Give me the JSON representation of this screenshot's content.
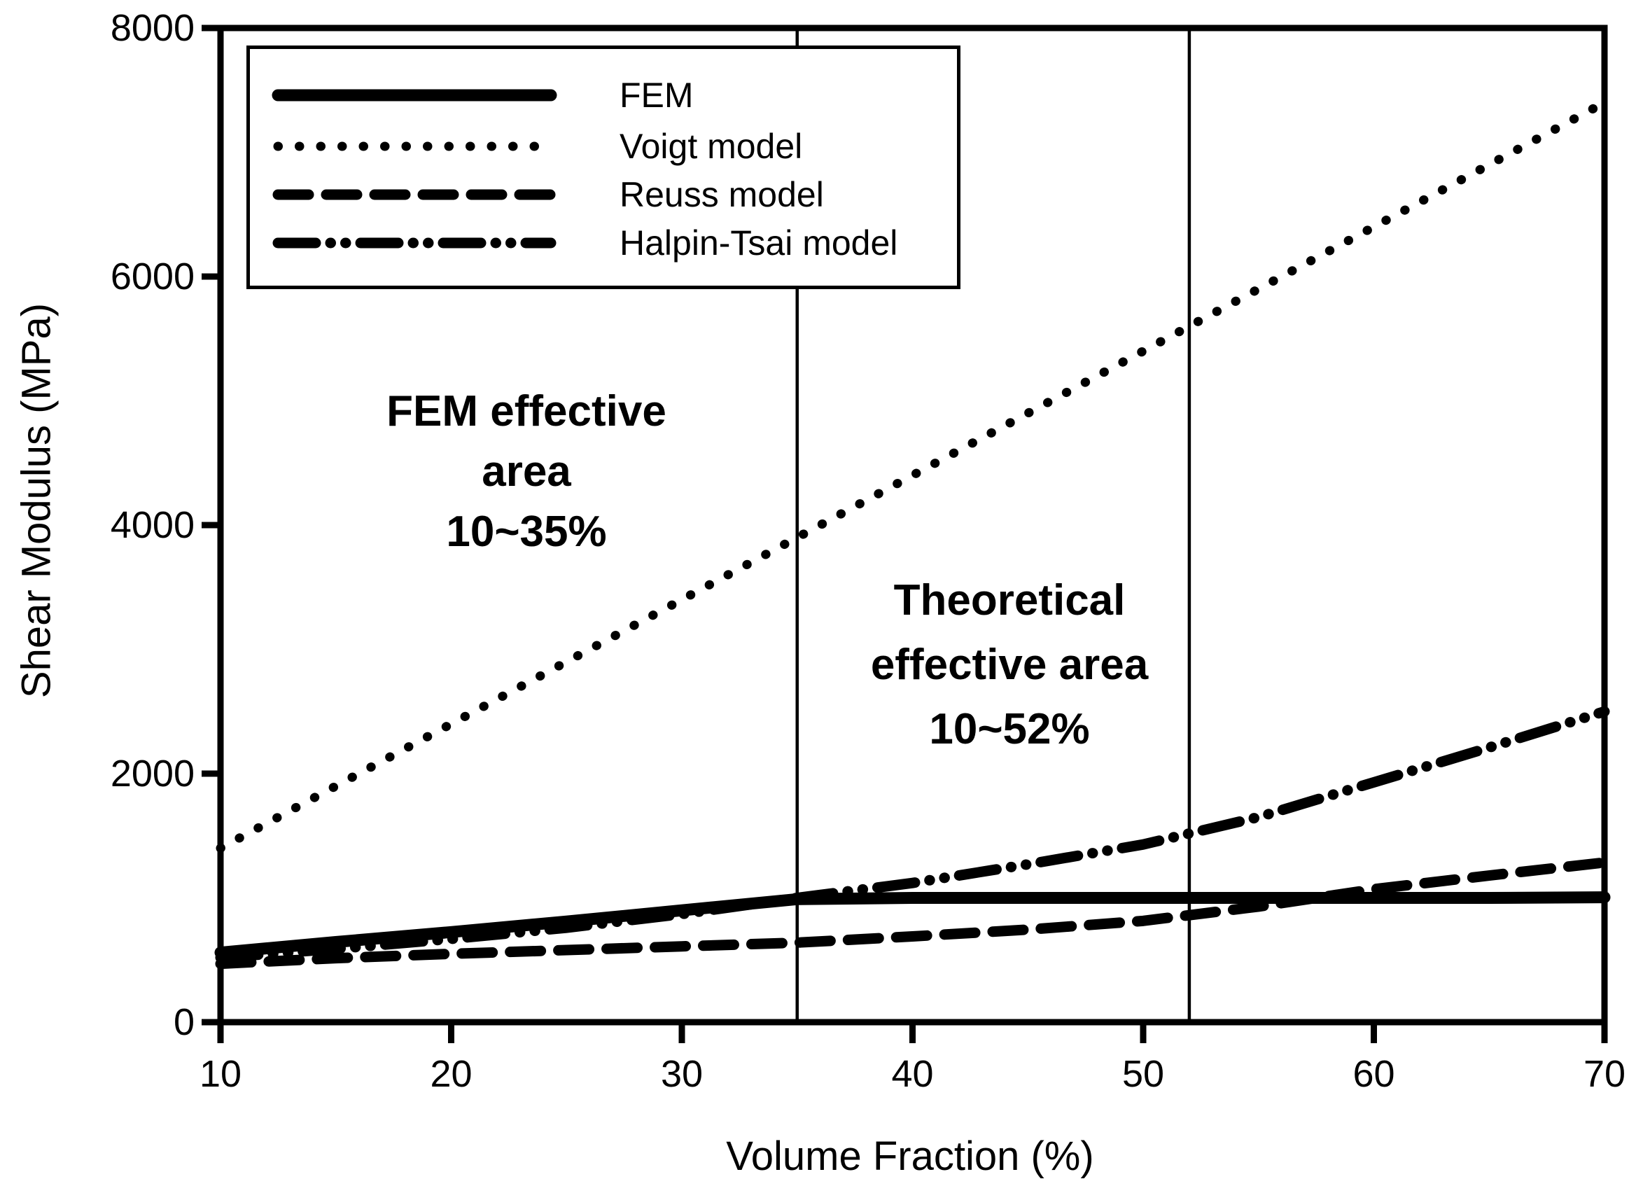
{
  "chart_data": {
    "type": "line",
    "title": "",
    "xlabel": "Volume Fraction (%)",
    "ylabel": "Shear Modulus (MPa)",
    "xlim": [
      10,
      70
    ],
    "ylim": [
      0,
      8000
    ],
    "x_ticks": [
      10,
      20,
      30,
      40,
      50,
      60,
      70
    ],
    "y_ticks": [
      0,
      2000,
      4000,
      6000,
      8000
    ],
    "grid": false,
    "legend_position": "upper-left",
    "line_color": "#000000",
    "x": [
      10,
      15,
      20,
      25,
      30,
      35,
      40,
      45,
      50,
      55,
      60,
      65,
      70
    ],
    "series": [
      {
        "name": "FEM",
        "style": "solid",
        "values": [
          560,
          645,
          725,
          810,
          900,
          990,
          1000,
          1000,
          1000,
          1000,
          1000,
          1000,
          1005
        ]
      },
      {
        "name": "Voigt model",
        "style": "dotted",
        "values": [
          1400,
          1900,
          2400,
          2900,
          3400,
          3900,
          4400,
          4900,
          5400,
          5900,
          6400,
          6900,
          7400
        ]
      },
      {
        "name": "Reuss model",
        "style": "dashed",
        "values": [
          470,
          515,
          550,
          580,
          610,
          640,
          690,
          745,
          815,
          930,
          1070,
          1180,
          1285
        ]
      },
      {
        "name": "Halpin-Tsai model",
        "style": "dash-dot-dot",
        "values": [
          520,
          590,
          670,
          760,
          870,
          1000,
          1120,
          1270,
          1430,
          1650,
          1930,
          2210,
          2500
        ]
      }
    ],
    "vertical_lines_pct": [
      35,
      52
    ]
  },
  "annotations": [
    {
      "lines": [
        "FEM effective",
        "area",
        "10~35%"
      ]
    },
    {
      "lines": [
        "Theoretical",
        "effective area",
        "10~52%"
      ]
    }
  ]
}
